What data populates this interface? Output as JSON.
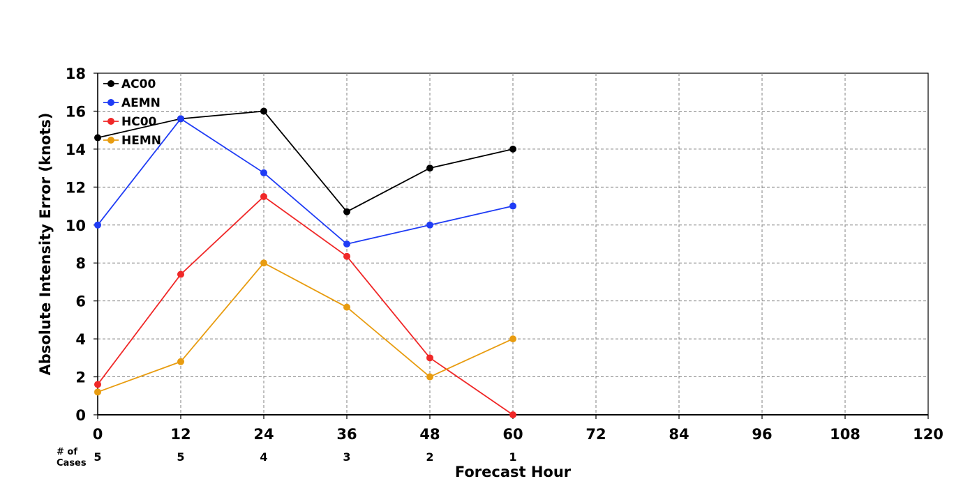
{
  "chart_data": {
    "type": "line",
    "title": "",
    "xlabel": "Forecast Hour",
    "ylabel": "Absolute Intensity Error (knots)",
    "xlim": [
      0,
      120
    ],
    "ylim": [
      0,
      18
    ],
    "x_ticks": [
      "0",
      "12",
      "24",
      "36",
      "48",
      "60",
      "72",
      "84",
      "96",
      "108",
      "120"
    ],
    "y_ticks": [
      "0",
      "2",
      "4",
      "6",
      "8",
      "10",
      "12",
      "14",
      "16",
      "18"
    ],
    "grid": true,
    "legend_position": "top-left",
    "x": [
      0,
      12,
      24,
      36,
      48,
      60
    ],
    "series": [
      {
        "name": "AC00",
        "color": "#000000",
        "values": [
          14.6,
          15.6,
          16.0,
          10.7,
          13.0,
          14.0
        ]
      },
      {
        "name": "AEMN",
        "color": "#1f3cf5",
        "values": [
          10.0,
          15.6,
          12.75,
          9.0,
          10.0,
          11.0
        ]
      },
      {
        "name": "HC00",
        "color": "#f02828",
        "values": [
          1.6,
          7.4,
          11.5,
          8.35,
          3.0,
          0.0
        ]
      },
      {
        "name": "HEMN",
        "color": "#e89c10",
        "values": [
          1.2,
          2.8,
          8.0,
          5.67,
          2.0,
          4.0
        ]
      }
    ],
    "cases": {
      "header": [
        "# of",
        "Cases"
      ],
      "x": [
        0,
        12,
        24,
        36,
        48,
        60
      ],
      "values": [
        "5",
        "5",
        "4",
        "3",
        "2",
        "1"
      ]
    }
  }
}
